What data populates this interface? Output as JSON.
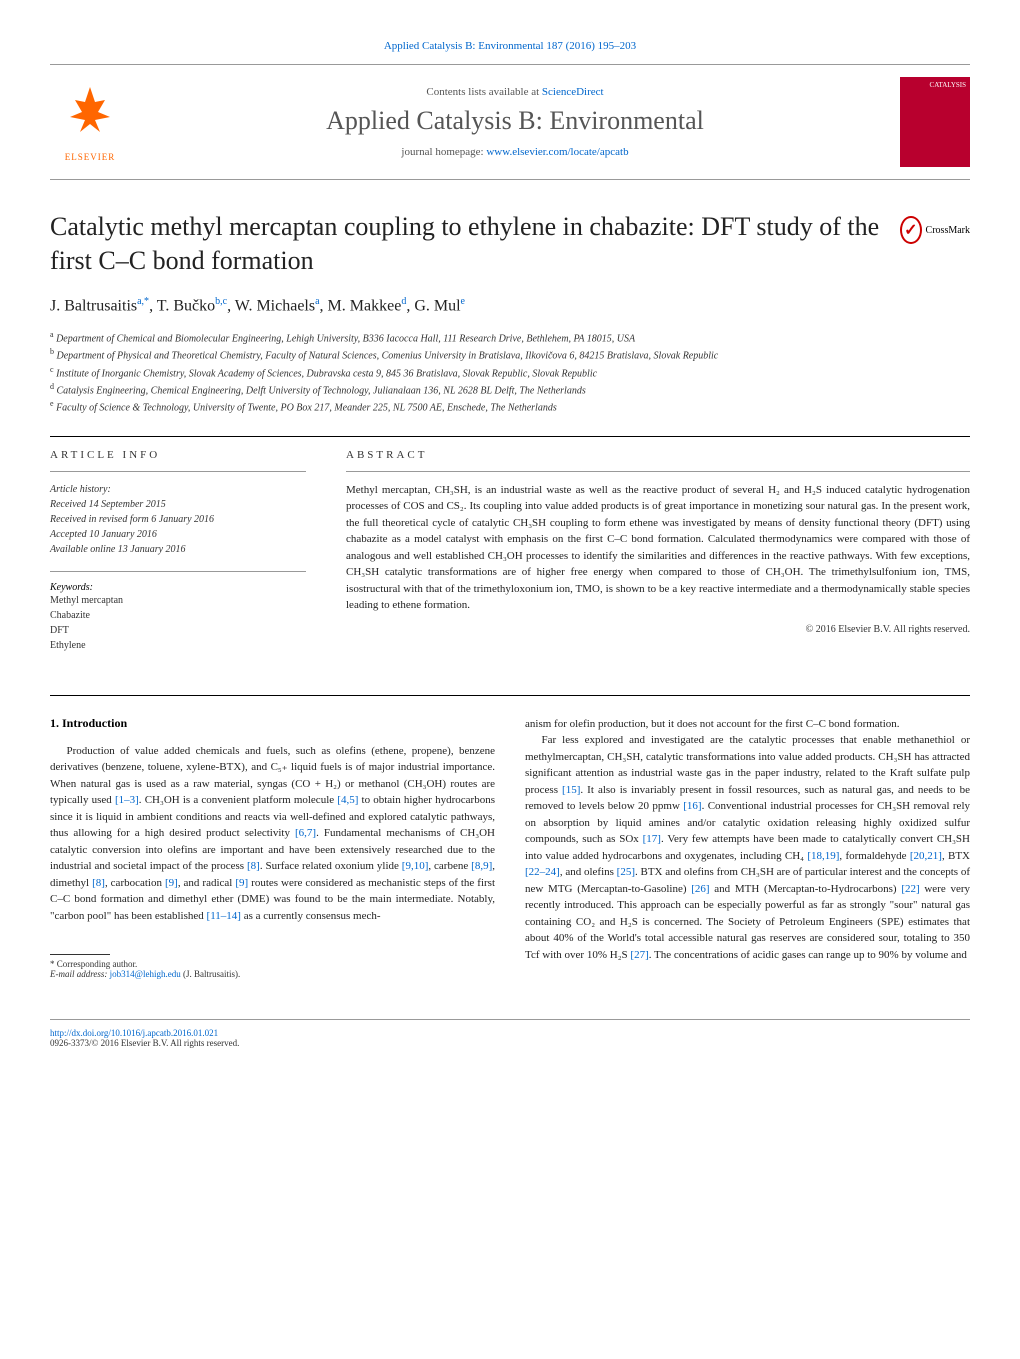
{
  "top_link": {
    "prefix": "Applied Catalysis B: Environmental 187 (2016) 195–203"
  },
  "header": {
    "contents_text": "Contents lists available at ",
    "contents_link": "ScienceDirect",
    "journal_title": "Applied Catalysis B: Environmental",
    "homepage_text": "journal homepage: ",
    "homepage_link": "www.elsevier.com/locate/apcatb",
    "cover_label": "CATALYSIS"
  },
  "article": {
    "title": "Catalytic methyl mercaptan coupling to ethylene in chabazite: DFT study of the first C–C bond formation",
    "crossmark": "CrossMark",
    "authors_html": "J. Baltrusaitis<sup>a,*</sup>, T. Bučko<sup>b,c</sup>, W. Michaels<sup>a</sup>, M. Makkee<sup>d</sup>, G. Mul<sup>e</sup>",
    "affiliations": [
      "a Department of Chemical and Biomolecular Engineering, Lehigh University, B336 Iacocca Hall, 111 Research Drive, Bethlehem, PA 18015, USA",
      "b Department of Physical and Theoretical Chemistry, Faculty of Natural Sciences, Comenius University in Bratislava, Ilkovičova 6, 84215 Bratislava, Slovak Republic",
      "c Institute of Inorganic Chemistry, Slovak Academy of Sciences, Dubravska cesta 9, 845 36 Bratislava, Slovak Republic, Slovak Republic",
      "d Catalysis Engineering, Chemical Engineering, Delft University of Technology, Julianalaan 136, NL 2628 BL Delft, The Netherlands",
      "e Faculty of Science & Technology, University of Twente, PO Box 217, Meander 225, NL 7500 AE, Enschede, The Netherlands"
    ]
  },
  "info": {
    "label": "ARTICLE INFO",
    "history_label": "Article history:",
    "received": "Received 14 September 2015",
    "revised": "Received in revised form 6 January 2016",
    "accepted": "Accepted 10 January 2016",
    "online": "Available online 13 January 2016",
    "keywords_label": "Keywords:",
    "keywords": [
      "Methyl mercaptan",
      "Chabazite",
      "DFT",
      "Ethylene"
    ]
  },
  "abstract": {
    "label": "ABSTRACT",
    "text": "Methyl mercaptan, CH₃SH, is an industrial waste as well as the reactive product of several H₂ and H₂S induced catalytic hydrogenation processes of COS and CS₂. Its coupling into value added products is of great importance in monetizing sour natural gas. In the present work, the full theoretical cycle of catalytic CH₃SH coupling to form ethene was investigated by means of density functional theory (DFT) using chabazite as a model catalyst with emphasis on the first C–C bond formation. Calculated thermodynamics were compared with those of analogous and well established CH₃OH processes to identify the similarities and differences in the reactive pathways. With few exceptions, CH₃SH catalytic transformations are of higher free energy when compared to those of CH₃OH. The trimethylsulfonium ion, TMS, isostructural with that of the trimethyloxonium ion, TMO, is shown to be a key reactive intermediate and a thermodynamically stable species leading to ethene formation.",
    "copyright": "© 2016 Elsevier B.V. All rights reserved."
  },
  "body": {
    "heading": "1. Introduction",
    "col1_p1": "Production of value added chemicals and fuels, such as olefins (ethene, propene), benzene derivatives (benzene, toluene, xylene-BTX), and C₅₊ liquid fuels is of major industrial importance. When natural gas is used as a raw material, syngas (CO + H₂) or methanol (CH₃OH) routes are typically used [1–3]. CH₃OH is a convenient platform molecule [4,5] to obtain higher hydrocarbons since it is liquid in ambient conditions and reacts via well-defined and explored catalytic pathways, thus allowing for a high desired product selectivity [6,7]. Fundamental mechanisms of CH₃OH catalytic conversion into olefins are important and have been extensively researched due to the industrial and societal impact of the process [8]. Surface related oxonium ylide [9,10], carbene [8,9], dimethyl [8], carbocation [9], and radical [9] routes were considered as mechanistic steps of the first C–C bond formation and dimethyl ether (DME) was found to be the main intermediate. Notably, \"carbon pool\" has been established [11–14] as a currently consensus mech-",
    "col2_p1": "anism for olefin production, but it does not account for the first C–C bond formation.",
    "col2_p2": "Far less explored and investigated are the catalytic processes that enable methanethiol or methylmercaptan, CH₃SH, catalytic transformations into value added products. CH₃SH has attracted significant attention as industrial waste gas in the paper industry, related to the Kraft sulfate pulp process [15]. It also is invariably present in fossil resources, such as natural gas, and needs to be removed to levels below 20 ppmw [16]. Conventional industrial processes for CH₃SH removal rely on absorption by liquid amines and/or catalytic oxidation releasing highly oxidized sulfur compounds, such as SOx [17]. Very few attempts have been made to catalytically convert CH₃SH into value added hydrocarbons and oxygenates, including CH₄ [18,19], formaldehyde [20,21], BTX [22–24], and olefins [25]. BTX and olefins from CH₃SH are of particular interest and the concepts of new MTG (Mercaptan-to-Gasoline) [26] and MTH (Mercaptan-to-Hydrocarbons) [22] were very recently introduced. This approach can be especially powerful as far as strongly \"sour\" natural gas containing CO₂ and H₂S is concerned. The Society of Petroleum Engineers (SPE) estimates that about 40% of the World's total accessible natural gas reserves are considered sour, totaling to 350 Tcf with over 10% H₂S [27]. The concentrations of acidic gases can range up to 90% by volume and"
  },
  "corresponding": {
    "label": "* Corresponding author.",
    "email_label": "E-mail address: ",
    "email": "job314@lehigh.edu",
    "name": " (J. Baltrusaitis)."
  },
  "footer": {
    "doi": "http://dx.doi.org/10.1016/j.apcatb.2016.01.021",
    "issn": "0926-3373/© 2016 Elsevier B.V. All rights reserved."
  },
  "colors": {
    "link": "#0066cc",
    "elsevier": "#ff6600",
    "cover": "#b8002e"
  }
}
